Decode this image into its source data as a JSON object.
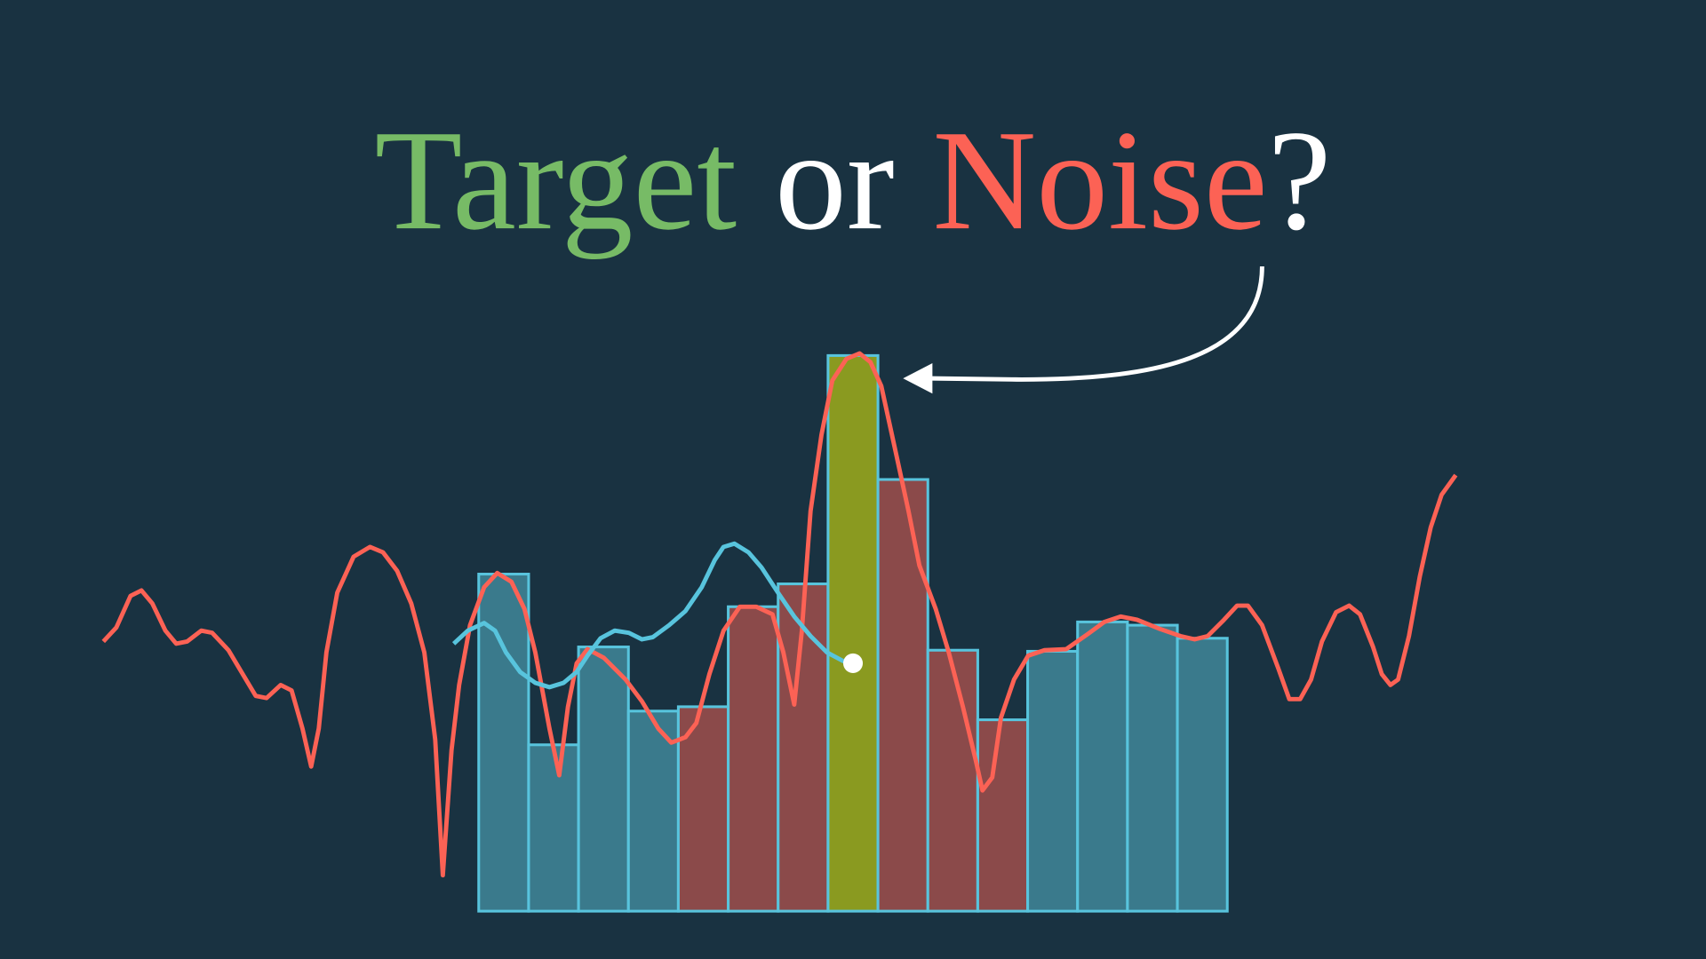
{
  "title": {
    "target": "Target",
    "or": "or",
    "noise": "Noise",
    "question": "?"
  }
}
